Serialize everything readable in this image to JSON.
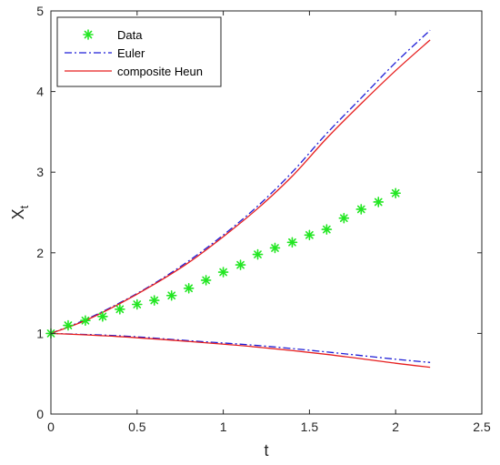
{
  "chart_data": {
    "type": "line",
    "xlabel": "t",
    "ylabel": "X",
    "ylabel_subscript": "t",
    "xlim": [
      0,
      2.5
    ],
    "ylim": [
      0,
      5
    ],
    "xticks": [
      0,
      0.5,
      1,
      1.5,
      2,
      2.5
    ],
    "yticks": [
      0,
      1,
      2,
      3,
      4,
      5
    ],
    "xtick_labels": [
      "0",
      "0.5",
      "1",
      "1.5",
      "2",
      "2.5"
    ],
    "ytick_labels": [
      "0",
      "1",
      "2",
      "3",
      "4",
      "5"
    ],
    "grid": false,
    "legend_position": "top-left",
    "legend": [
      "Data",
      "Euler",
      "composite Heun"
    ],
    "series": [
      {
        "name": "Data",
        "style": "markers-asterisk",
        "color": "#22e622",
        "x": [
          0,
          0.1,
          0.2,
          0.3,
          0.4,
          0.5,
          0.6,
          0.7,
          0.8,
          0.9,
          1.0,
          1.1,
          1.2,
          1.3,
          1.4,
          1.5,
          1.6,
          1.7,
          1.8,
          1.9,
          2.0
        ],
        "y": [
          1.0,
          1.1,
          1.16,
          1.21,
          1.3,
          1.36,
          1.41,
          1.47,
          1.56,
          1.66,
          1.76,
          1.85,
          1.98,
          2.06,
          2.13,
          2.22,
          2.29,
          2.43,
          2.54,
          2.63,
          2.74
        ]
      },
      {
        "name": "Euler",
        "style": "dash-dot",
        "color": "#1f1fd6",
        "upper": {
          "x": [
            0,
            0.2,
            0.4,
            0.6,
            0.8,
            1.0,
            1.2,
            1.4,
            1.6,
            1.8,
            2.0,
            2.2
          ],
          "y": [
            1.0,
            1.17,
            1.38,
            1.62,
            1.9,
            2.22,
            2.58,
            3.0,
            3.48,
            3.92,
            4.36,
            4.76
          ]
        },
        "lower": {
          "x": [
            0,
            0.4,
            0.8,
            1.2,
            1.6,
            2.0,
            2.2
          ],
          "y": [
            1.0,
            0.97,
            0.91,
            0.85,
            0.77,
            0.68,
            0.64
          ]
        }
      },
      {
        "name": "composite Heun",
        "style": "solid",
        "color": "#e61e1e",
        "upper": {
          "x": [
            0,
            0.2,
            0.4,
            0.6,
            0.8,
            1.0,
            1.2,
            1.4,
            1.6,
            1.8,
            2.0,
            2.2
          ],
          "y": [
            1.0,
            1.16,
            1.37,
            1.61,
            1.88,
            2.2,
            2.55,
            2.95,
            3.42,
            3.85,
            4.26,
            4.64
          ]
        },
        "lower": {
          "x": [
            0,
            0.4,
            0.8,
            1.2,
            1.6,
            2.0,
            2.2
          ],
          "y": [
            1.0,
            0.96,
            0.9,
            0.83,
            0.74,
            0.63,
            0.58
          ]
        }
      }
    ]
  }
}
